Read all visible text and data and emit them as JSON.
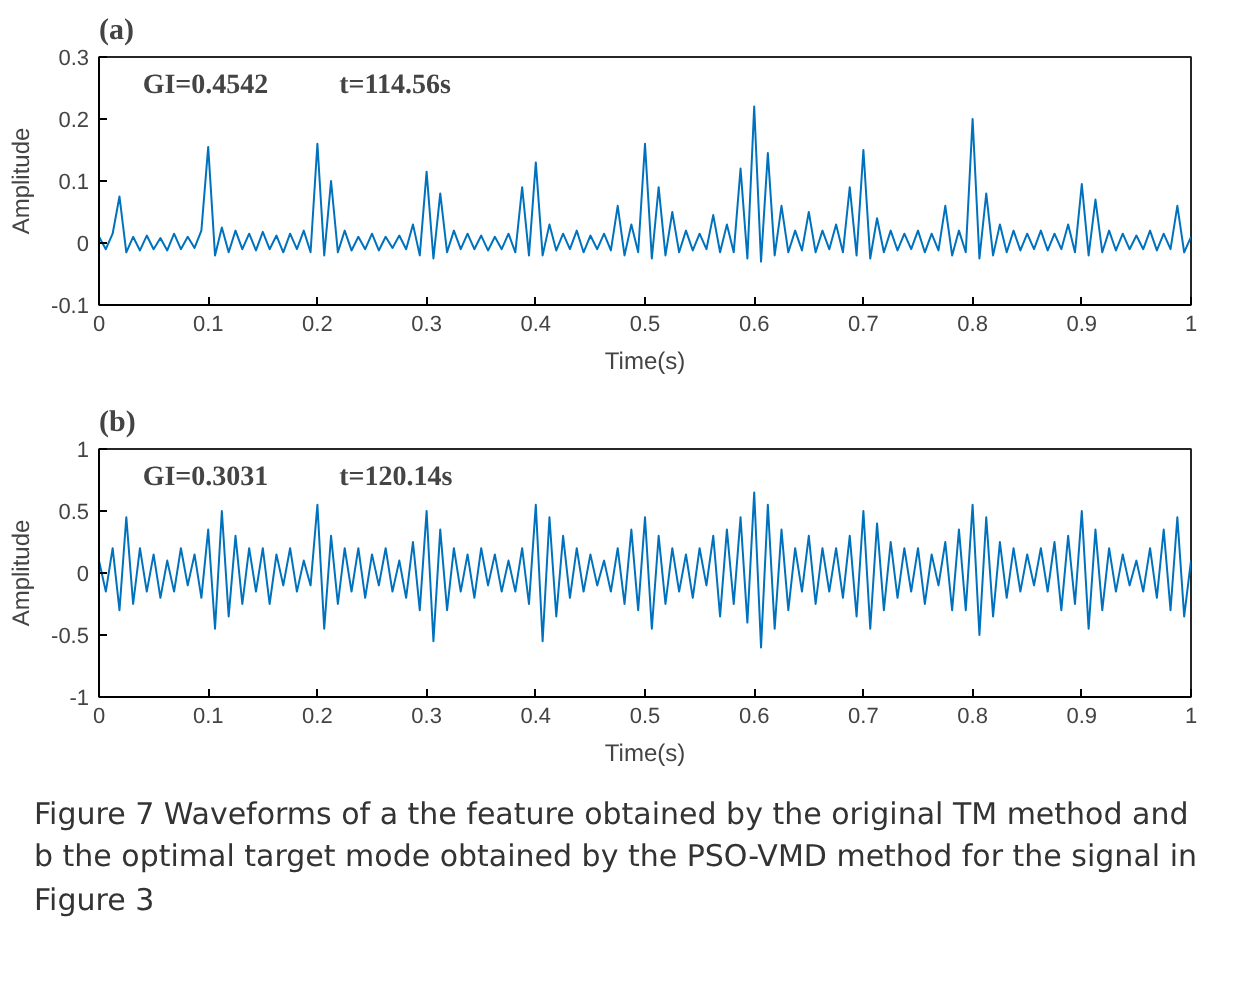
{
  "chart_data": [
    {
      "type": "line",
      "title": "(a)",
      "xlabel": "Time(s)",
      "ylabel": "Amplitude",
      "x": [
        0,
        0.00625,
        0.0125,
        0.01875,
        0.025,
        0.03125,
        0.0375,
        0.04375,
        0.05,
        0.05625,
        0.0625,
        0.06875,
        0.075,
        0.08125,
        0.0875,
        0.09375,
        0.1,
        0.10625,
        0.1125,
        0.11875,
        0.125,
        0.13125,
        0.1375,
        0.14375,
        0.15,
        0.15625,
        0.1625,
        0.16875,
        0.175,
        0.18125,
        0.1875,
        0.19375,
        0.2,
        0.20625,
        0.2125,
        0.21875,
        0.225,
        0.23125,
        0.2375,
        0.24375,
        0.25,
        0.25625,
        0.2625,
        0.26875,
        0.275,
        0.28125,
        0.2875,
        0.29375,
        0.3,
        0.30625,
        0.3125,
        0.31875,
        0.325,
        0.33125,
        0.3375,
        0.34375,
        0.35,
        0.35625,
        0.3625,
        0.36875,
        0.375,
        0.38125,
        0.3875,
        0.39375,
        0.4,
        0.40625,
        0.4125,
        0.41875,
        0.425,
        0.43125,
        0.4375,
        0.44375,
        0.45,
        0.45625,
        0.4625,
        0.46875,
        0.475,
        0.48125,
        0.4875,
        0.49375,
        0.5,
        0.50625,
        0.5125,
        0.51875,
        0.525,
        0.53125,
        0.5375,
        0.54375,
        0.55,
        0.55625,
        0.5625,
        0.56875,
        0.575,
        0.58125,
        0.5875,
        0.59375,
        0.6,
        0.60625,
        0.6125,
        0.61875,
        0.625,
        0.63125,
        0.6375,
        0.64375,
        0.65,
        0.65625,
        0.6625,
        0.66875,
        0.675,
        0.68125,
        0.6875,
        0.69375,
        0.7,
        0.70625,
        0.7125,
        0.71875,
        0.725,
        0.73125,
        0.7375,
        0.74375,
        0.75,
        0.75625,
        0.7625,
        0.76875,
        0.775,
        0.78125,
        0.7875,
        0.79375,
        0.8,
        0.80625,
        0.8125,
        0.81875,
        0.825,
        0.83125,
        0.8375,
        0.84375,
        0.85,
        0.85625,
        0.8625,
        0.86875,
        0.875,
        0.88125,
        0.8875,
        0.89375,
        0.9,
        0.90625,
        0.9125,
        0.91875,
        0.925,
        0.93125,
        0.9375,
        0.94375,
        0.95,
        0.95625,
        0.9625,
        0.96875,
        0.975,
        0.98125,
        0.9875,
        0.99375,
        1
      ],
      "series": [
        {
          "color": "#0072bd",
          "values": [
            0.01,
            -0.01,
            0.015,
            0.075,
            -0.015,
            0.01,
            -0.012,
            0.012,
            -0.01,
            0.008,
            -0.012,
            0.015,
            -0.01,
            0.01,
            -0.008,
            0.02,
            0.155,
            -0.02,
            0.025,
            -0.015,
            0.02,
            -0.01,
            0.015,
            -0.012,
            0.018,
            -0.01,
            0.012,
            -0.015,
            0.015,
            -0.01,
            0.02,
            -0.015,
            0.16,
            -0.02,
            0.1,
            -0.015,
            0.02,
            -0.012,
            0.01,
            -0.01,
            0.015,
            -0.012,
            0.01,
            -0.008,
            0.012,
            -0.01,
            0.03,
            -0.02,
            0.115,
            -0.025,
            0.08,
            -0.015,
            0.02,
            -0.01,
            0.015,
            -0.01,
            0.012,
            -0.012,
            0.01,
            -0.01,
            0.015,
            -0.015,
            0.09,
            -0.02,
            0.13,
            -0.02,
            0.03,
            -0.012,
            0.015,
            -0.01,
            0.02,
            -0.015,
            0.012,
            -0.01,
            0.015,
            -0.012,
            0.06,
            -0.02,
            0.03,
            -0.015,
            0.16,
            -0.025,
            0.09,
            -0.02,
            0.05,
            -0.015,
            0.02,
            -0.012,
            0.015,
            -0.01,
            0.045,
            -0.015,
            0.03,
            -0.015,
            0.12,
            -0.025,
            0.22,
            -0.03,
            0.145,
            -0.02,
            0.06,
            -0.015,
            0.02,
            -0.012,
            0.05,
            -0.015,
            0.02,
            -0.01,
            0.03,
            -0.015,
            0.09,
            -0.02,
            0.15,
            -0.025,
            0.04,
            -0.015,
            0.02,
            -0.012,
            0.015,
            -0.01,
            0.02,
            -0.015,
            0.015,
            -0.012,
            0.06,
            -0.02,
            0.02,
            -0.015,
            0.2,
            -0.025,
            0.08,
            -0.02,
            0.03,
            -0.015,
            0.02,
            -0.012,
            0.015,
            -0.01,
            0.02,
            -0.012,
            0.015,
            -0.01,
            0.03,
            -0.015,
            0.095,
            -0.02,
            0.07,
            -0.015,
            0.02,
            -0.012,
            0.015,
            -0.01,
            0.012,
            -0.01,
            0.02,
            -0.012,
            0.015,
            -0.01,
            0.06,
            -0.015,
            0.01
          ]
        }
      ],
      "xlim": [
        0,
        1
      ],
      "xticks": [
        0,
        0.1,
        0.2,
        0.3,
        0.4,
        0.5,
        0.6,
        0.7,
        0.8,
        0.9,
        1
      ],
      "ylim": [
        -0.1,
        0.3
      ],
      "yticks": [
        -0.1,
        0,
        0.1,
        0.2,
        0.3
      ],
      "annotations": [
        "GI=0.4542",
        "t=114.56s"
      ],
      "grid": false
    },
    {
      "type": "line",
      "title": "(b)",
      "xlabel": "Time(s)",
      "ylabel": "Amplitude",
      "x": [
        0,
        0.00625,
        0.0125,
        0.01875,
        0.025,
        0.03125,
        0.0375,
        0.04375,
        0.05,
        0.05625,
        0.0625,
        0.06875,
        0.075,
        0.08125,
        0.0875,
        0.09375,
        0.1,
        0.10625,
        0.1125,
        0.11875,
        0.125,
        0.13125,
        0.1375,
        0.14375,
        0.15,
        0.15625,
        0.1625,
        0.16875,
        0.175,
        0.18125,
        0.1875,
        0.19375,
        0.2,
        0.20625,
        0.2125,
        0.21875,
        0.225,
        0.23125,
        0.2375,
        0.24375,
        0.25,
        0.25625,
        0.2625,
        0.26875,
        0.275,
        0.28125,
        0.2875,
        0.29375,
        0.3,
        0.30625,
        0.3125,
        0.31875,
        0.325,
        0.33125,
        0.3375,
        0.34375,
        0.35,
        0.35625,
        0.3625,
        0.36875,
        0.375,
        0.38125,
        0.3875,
        0.39375,
        0.4,
        0.40625,
        0.4125,
        0.41875,
        0.425,
        0.43125,
        0.4375,
        0.44375,
        0.45,
        0.45625,
        0.4625,
        0.46875,
        0.475,
        0.48125,
        0.4875,
        0.49375,
        0.5,
        0.50625,
        0.5125,
        0.51875,
        0.525,
        0.53125,
        0.5375,
        0.54375,
        0.55,
        0.55625,
        0.5625,
        0.56875,
        0.575,
        0.58125,
        0.5875,
        0.59375,
        0.6,
        0.60625,
        0.6125,
        0.61875,
        0.625,
        0.63125,
        0.6375,
        0.64375,
        0.65,
        0.65625,
        0.6625,
        0.66875,
        0.675,
        0.68125,
        0.6875,
        0.69375,
        0.7,
        0.70625,
        0.7125,
        0.71875,
        0.725,
        0.73125,
        0.7375,
        0.74375,
        0.75,
        0.75625,
        0.7625,
        0.76875,
        0.775,
        0.78125,
        0.7875,
        0.79375,
        0.8,
        0.80625,
        0.8125,
        0.81875,
        0.825,
        0.83125,
        0.8375,
        0.84375,
        0.85,
        0.85625,
        0.8625,
        0.86875,
        0.875,
        0.88125,
        0.8875,
        0.89375,
        0.9,
        0.90625,
        0.9125,
        0.91875,
        0.925,
        0.93125,
        0.9375,
        0.94375,
        0.95,
        0.95625,
        0.9625,
        0.96875,
        0.975,
        0.98125,
        0.9875,
        0.99375,
        1
      ],
      "series": [
        {
          "color": "#0072bd",
          "values": [
            0.1,
            -0.15,
            0.2,
            -0.3,
            0.45,
            -0.25,
            0.2,
            -0.15,
            0.15,
            -0.2,
            0.1,
            -0.15,
            0.2,
            -0.1,
            0.15,
            -0.2,
            0.35,
            -0.45,
            0.5,
            -0.35,
            0.3,
            -0.25,
            0.2,
            -0.15,
            0.2,
            -0.25,
            0.15,
            -0.1,
            0.2,
            -0.15,
            0.1,
            -0.1,
            0.55,
            -0.45,
            0.3,
            -0.25,
            0.2,
            -0.15,
            0.2,
            -0.2,
            0.15,
            -0.1,
            0.2,
            -0.15,
            0.1,
            -0.2,
            0.25,
            -0.3,
            0.5,
            -0.55,
            0.35,
            -0.3,
            0.2,
            -0.15,
            0.15,
            -0.2,
            0.2,
            -0.1,
            0.15,
            -0.15,
            0.1,
            -0.15,
            0.2,
            -0.25,
            0.55,
            -0.55,
            0.45,
            -0.35,
            0.3,
            -0.2,
            0.2,
            -0.15,
            0.15,
            -0.1,
            0.1,
            -0.15,
            0.2,
            -0.25,
            0.35,
            -0.3,
            0.45,
            -0.45,
            0.3,
            -0.25,
            0.2,
            -0.15,
            0.15,
            -0.2,
            0.2,
            -0.1,
            0.3,
            -0.35,
            0.35,
            -0.25,
            0.45,
            -0.4,
            0.65,
            -0.6,
            0.55,
            -0.45,
            0.35,
            -0.3,
            0.2,
            -0.15,
            0.3,
            -0.25,
            0.2,
            -0.15,
            0.2,
            -0.2,
            0.3,
            -0.35,
            0.5,
            -0.45,
            0.4,
            -0.3,
            0.25,
            -0.2,
            0.2,
            -0.15,
            0.2,
            -0.25,
            0.15,
            -0.1,
            0.25,
            -0.3,
            0.35,
            -0.3,
            0.55,
            -0.5,
            0.45,
            -0.35,
            0.25,
            -0.2,
            0.2,
            -0.15,
            0.15,
            -0.1,
            0.2,
            -0.15,
            0.25,
            -0.3,
            0.3,
            -0.25,
            0.5,
            -0.45,
            0.35,
            -0.3,
            0.2,
            -0.15,
            0.15,
            -0.1,
            0.1,
            -0.15,
            0.2,
            -0.2,
            0.35,
            -0.3,
            0.45,
            -0.35,
            0.1
          ]
        }
      ],
      "xlim": [
        0,
        1
      ],
      "xticks": [
        0,
        0.1,
        0.2,
        0.3,
        0.4,
        0.5,
        0.6,
        0.7,
        0.8,
        0.9,
        1
      ],
      "ylim": [
        -1,
        1
      ],
      "yticks": [
        -1,
        -0.5,
        0,
        0.5,
        1
      ],
      "annotations": [
        "GI=0.3031",
        "t=120.14s",
        "Figure 7  Waveforms of a the feature obtained by the original TM method and b the optimal target mode obtained by the PSO-VMD method for the signal in Figure 3"
      ],
      "grid": false
    }
  ]
}
